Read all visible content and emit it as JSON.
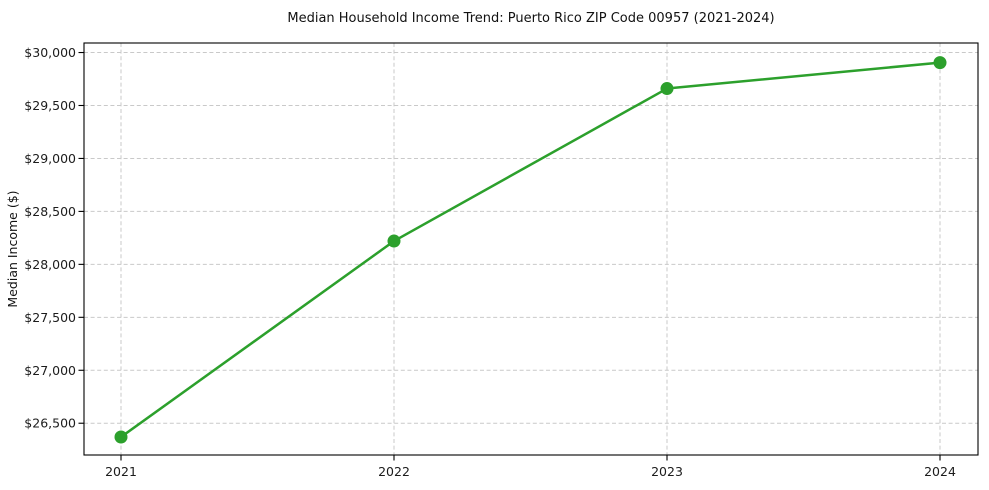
{
  "page": {
    "background": "#ffffff"
  },
  "chart_data": {
    "type": "line",
    "title": "Median Household Income Trend: Puerto Rico ZIP Code 00957 (2021-2024)",
    "xlabel": "",
    "ylabel": "Median Income ($)",
    "categories": [
      "2021",
      "2022",
      "2023",
      "2024"
    ],
    "values": [
      26370,
      28220,
      29660,
      29905
    ],
    "ylim": [
      26200,
      30090
    ],
    "yticks": [
      26500,
      27000,
      27500,
      28000,
      28500,
      29000,
      29500,
      30000
    ],
    "ytick_labels": [
      "$26,500",
      "$27,000",
      "$27,500",
      "$28,000",
      "$28,500",
      "$29,000",
      "$29,500",
      "$30,000"
    ],
    "xtick_labels": [
      "2021",
      "2022",
      "2023",
      "2024"
    ],
    "grid": {
      "show": true,
      "style": "dashed",
      "color": "#c9c9c9"
    },
    "legend": {
      "show": false
    },
    "line_color": "#2ca02c",
    "marker_color": "#2ca02c",
    "marker_radius": 6.5,
    "line_width": 2.5,
    "axis_color": "#000000",
    "text_color": "#1c1c1c"
  }
}
